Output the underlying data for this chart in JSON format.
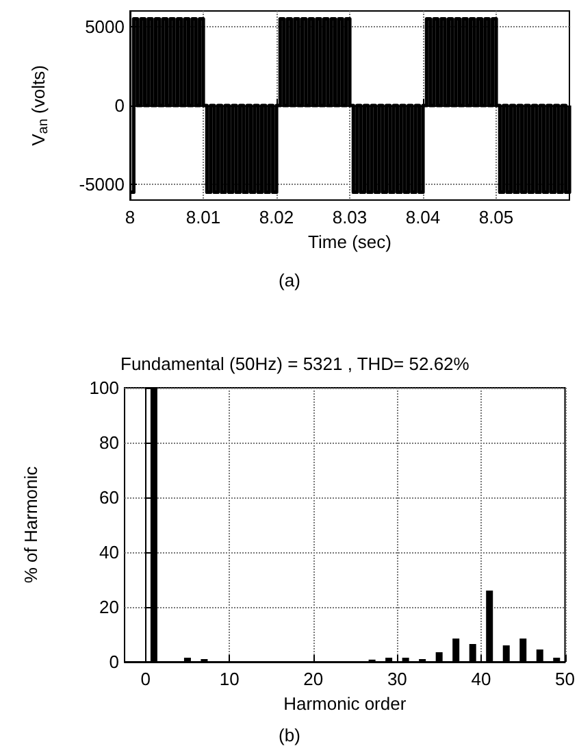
{
  "chart_data": [
    {
      "type": "step",
      "xlabel": "Time (sec)",
      "ylabel": "V$_{an}$ (volts)",
      "annotations": [
        "(a)"
      ],
      "xlim": [
        8,
        8.06
      ],
      "xticks": [
        8,
        8.01,
        8.02,
        8.03,
        8.04,
        8.05
      ],
      "ylim": [
        -6000,
        6000
      ],
      "yticks": [
        -5000,
        0,
        5000
      ],
      "grid": true,
      "series": [
        {
          "color": "#000000",
          "x": [
            8,
            8.0005,
            8.001,
            8.0015,
            8.002,
            8.0025,
            8.003,
            8.0035,
            8.004,
            8.0045,
            8.005,
            8.0055,
            8.006,
            8.0065,
            8.007,
            8.0075,
            8.008,
            8.0085,
            8.009,
            8.0095,
            8.01,
            8.0105,
            8.011,
            8.0115,
            8.012,
            8.0125,
            8.013,
            8.0135,
            8.014,
            8.0145,
            8.015,
            8.0155,
            8.016,
            8.0165,
            8.017,
            8.0175,
            8.018,
            8.0185,
            8.019,
            8.0195,
            8.02,
            8.0205,
            8.021,
            8.0215,
            8.022,
            8.0225,
            8.023,
            8.0235,
            8.024,
            8.0245,
            8.025,
            8.0255,
            8.026,
            8.0265,
            8.027,
            8.0275,
            8.028,
            8.0285,
            8.029,
            8.0295,
            8.03,
            8.0305,
            8.031,
            8.0315,
            8.032,
            8.0325,
            8.033,
            8.0335,
            8.034,
            8.0345,
            8.035,
            8.0355,
            8.036,
            8.0365,
            8.037,
            8.0375,
            8.038,
            8.0385,
            8.039,
            8.0395,
            8.04,
            8.0405,
            8.041,
            8.0415,
            8.042,
            8.0425,
            8.043,
            8.0435,
            8.044,
            8.0445,
            8.045,
            8.0455,
            8.046,
            8.0465,
            8.047,
            8.0475,
            8.048,
            8.0485,
            8.049,
            8.0495,
            8.05,
            8.0505,
            8.051,
            8.0515,
            8.052,
            8.0525,
            8.053,
            8.0535,
            8.054,
            8.0545,
            8.055,
            8.0555,
            8.056,
            8.0565,
            8.057,
            8.0575,
            8.058,
            8.0585,
            8.059,
            8.0595,
            8.06
          ],
          "values": [
            -5500,
            5500,
            0,
            5500,
            0,
            5500,
            0,
            5500,
            0,
            5500,
            0,
            5500,
            0,
            5500,
            0,
            5500,
            0,
            5500,
            0,
            5500,
            0,
            -5500,
            0,
            -5500,
            0,
            -5500,
            0,
            -5500,
            0,
            -5500,
            0,
            -5500,
            0,
            -5500,
            0,
            -5500,
            0,
            -5500,
            0,
            -5500,
            0,
            5500,
            0,
            5500,
            0,
            5500,
            0,
            5500,
            0,
            5500,
            0,
            5500,
            0,
            5500,
            0,
            5500,
            0,
            5500,
            0,
            5500,
            0,
            -5500,
            0,
            -5500,
            0,
            -5500,
            0,
            -5500,
            0,
            -5500,
            0,
            -5500,
            0,
            -5500,
            0,
            -5500,
            0,
            -5500,
            0,
            -5500,
            0,
            5500,
            0,
            5500,
            0,
            5500,
            0,
            5500,
            0,
            5500,
            0,
            5500,
            0,
            5500,
            0,
            5500,
            0,
            5500,
            0,
            5500,
            0,
            -5500,
            0,
            -5500,
            0,
            -5500,
            0,
            -5500,
            0,
            -5500,
            0,
            -5500,
            0,
            -5500,
            0,
            -5500,
            0,
            -5500,
            0,
            -5500,
            0
          ]
        }
      ]
    },
    {
      "type": "bar",
      "title": "Fundamental (50Hz) = 5321 , THD= 52.62%",
      "xlabel": "Harmonic order",
      "ylabel": "% of Harmonic",
      "annotations": [
        "(b)"
      ],
      "xlim": [
        -2.5,
        50
      ],
      "xticks": [
        0,
        10,
        20,
        30,
        40,
        50
      ],
      "ylim": [
        0,
        100
      ],
      "yticks": [
        0,
        20,
        40,
        60,
        80,
        100
      ],
      "grid": true,
      "x": [
        1,
        5,
        7,
        27,
        29,
        31,
        33,
        35,
        37,
        39,
        41,
        43,
        45,
        47,
        49
      ],
      "series": [
        {
          "color": "#000000",
          "values": [
            100,
            1.5,
            1,
            0.8,
            1.5,
            1.5,
            1,
            3.5,
            8.5,
            6.5,
            26,
            6,
            8.5,
            4.5,
            1.5
          ]
        }
      ]
    }
  ]
}
